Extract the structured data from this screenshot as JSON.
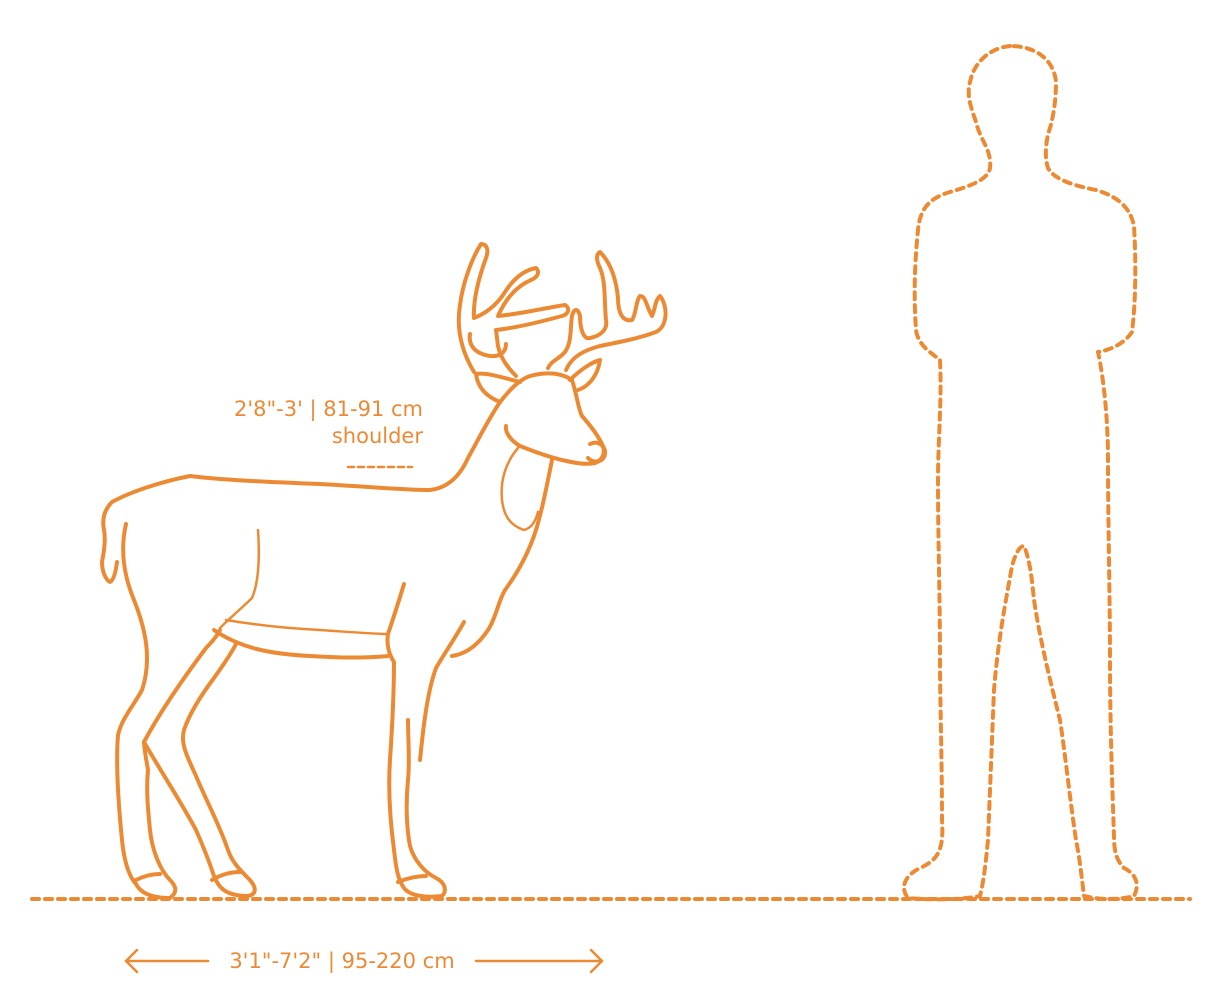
{
  "diagram": {
    "accent_color": "#EC8A34",
    "background_color": "#FFFFFF",
    "subject": "deer",
    "reference_figure": "human-silhouette",
    "shoulder_height": {
      "value": "2'8\"-3' | 81-91 cm",
      "caption": "shoulder"
    },
    "body_length": {
      "value": "3'1\"-7'2\" | 95-220 cm"
    }
  }
}
